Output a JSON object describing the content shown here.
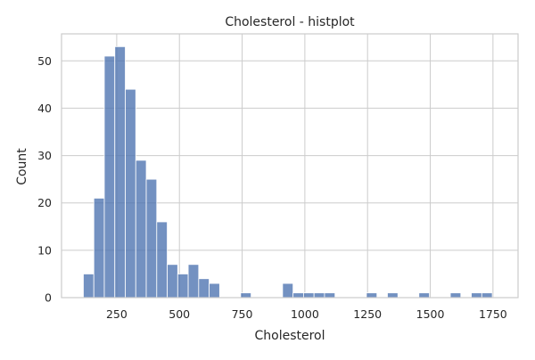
{
  "chart_data": {
    "type": "bar",
    "title": "Cholesterol - histplot",
    "xlabel": "Cholesterol",
    "ylabel": "Count",
    "xlim": [
      30,
      1850
    ],
    "ylim": [
      0,
      55.7
    ],
    "grid": true,
    "xticks": [
      250,
      500,
      750,
      1000,
      1250,
      1500,
      1750
    ],
    "yticks": [
      0,
      10,
      20,
      30,
      40,
      50
    ],
    "bin_width": 41.8,
    "bin_edges_start": 117,
    "counts": [
      5,
      21,
      51,
      53,
      44,
      29,
      25,
      16,
      7,
      5,
      7,
      4,
      3,
      0,
      0,
      1,
      0,
      0,
      0,
      3,
      1,
      1,
      1,
      1,
      0,
      0,
      0,
      1,
      0,
      1,
      0,
      0,
      1,
      0,
      0,
      1,
      0,
      1,
      1
    ]
  }
}
